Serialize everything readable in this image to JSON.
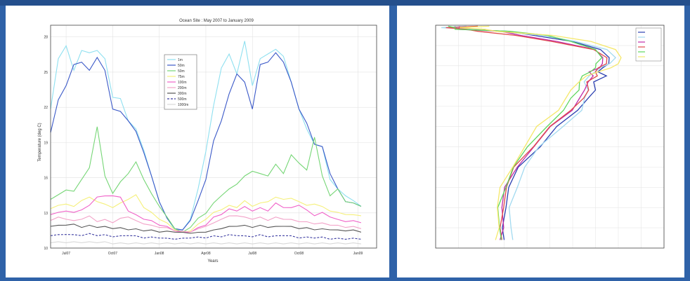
{
  "chart_data": [
    {
      "type": "line",
      "title": "Ocean Site : May 2007 to January 2009",
      "xlabel": "Years",
      "ylabel": "Temperature (deg C)",
      "xlim": [
        0,
        21
      ],
      "ylim": [
        10,
        29
      ],
      "yticks": [
        10,
        13,
        16,
        19,
        22,
        25,
        28
      ],
      "xticks": [
        {
          "x": 1.0,
          "label": "Jul07"
        },
        {
          "x": 4.0,
          "label": "Oct07"
        },
        {
          "x": 7.0,
          "label": "Jan08"
        },
        {
          "x": 10.0,
          "label": "Apr08"
        },
        {
          "x": 13.0,
          "label": "Jul08"
        },
        {
          "x": 16.0,
          "label": "Oct08"
        },
        {
          "x": 19.8,
          "label": "Jan09"
        }
      ],
      "legend_position": "top-center",
      "grid": true,
      "x": [
        0,
        0.5,
        1,
        1.5,
        2,
        2.5,
        3,
        3.5,
        4,
        4.5,
        5,
        5.5,
        6,
        6.5,
        7,
        7.5,
        8,
        8.5,
        9,
        9.5,
        10,
        10.5,
        11,
        11.5,
        12,
        12.5,
        13,
        13.5,
        14,
        14.5,
        15,
        15.5,
        16,
        16.5,
        17,
        17.5,
        18,
        18.5,
        19,
        19.5,
        20
      ],
      "series": [
        {
          "name": "1m",
          "color": "#8fe0f0",
          "style": "solid",
          "values": [
            22,
            26,
            27.4,
            25,
            27,
            26.5,
            27,
            26,
            23,
            22.6,
            21,
            20,
            18.5,
            16,
            14,
            12.5,
            11.6,
            11.5,
            12.5,
            15,
            18.4,
            22,
            25.5,
            26.4,
            25,
            27.5,
            24,
            26,
            26.7,
            26.8,
            26.5,
            24,
            22,
            20,
            19,
            18.5,
            16,
            15,
            14.5,
            14,
            13.6
          ]
        },
        {
          "name": "50m",
          "color": "#3b59c8",
          "style": "solid",
          "values": [
            20,
            22.5,
            24,
            25.5,
            26,
            25,
            26.4,
            25,
            22,
            21.5,
            21,
            19.8,
            18.3,
            16,
            14,
            12.5,
            11.7,
            11.5,
            12.4,
            14,
            16,
            19,
            21,
            23,
            25,
            24,
            22,
            25.5,
            26,
            26.5,
            26,
            24,
            22,
            20.5,
            19,
            18.5,
            16.5,
            15,
            14,
            13.8,
            13.6
          ]
        },
        {
          "name": "50m",
          "color": "#76d676",
          "style": "solid",
          "values": [
            14.2,
            14.5,
            15,
            14.8,
            16,
            16.7,
            20.5,
            16,
            14.7,
            15.5,
            16.5,
            17.2,
            16,
            14.6,
            13.6,
            12.6,
            11.7,
            11.3,
            11.8,
            12.5,
            13,
            13.8,
            14.5,
            15,
            15.6,
            16,
            16.7,
            16.2,
            16.3,
            17,
            16.5,
            17.8,
            17.4,
            16.5,
            19.6,
            16,
            14.5,
            15,
            14,
            13.8,
            13.6
          ]
        },
        {
          "name": "75m",
          "color": "#f5f07a",
          "style": "solid",
          "values": [
            13.4,
            13.6,
            13.8,
            13.5,
            14.1,
            14.3,
            14,
            13.7,
            13.5,
            13.8,
            14.2,
            14.5,
            13.5,
            13,
            12.5,
            12.1,
            11.6,
            11.3,
            11.5,
            12,
            12.5,
            13,
            13.3,
            13.6,
            13.5,
            14,
            13.6,
            13.8,
            14,
            14.3,
            14.2,
            14.2,
            14,
            13.6,
            13.8,
            13.5,
            13.2,
            13,
            12.9,
            12.8,
            12.8
          ]
        },
        {
          "name": "100m",
          "color": "#f062c8",
          "style": "solid",
          "values": [
            12.9,
            13,
            13.2,
            13,
            13.3,
            13.6,
            14.4,
            14.4,
            14.5,
            14.3,
            13.2,
            12.8,
            12.5,
            12.3,
            12,
            11.8,
            11.5,
            11.3,
            11.4,
            11.7,
            12,
            12.6,
            12.9,
            13.3,
            13.2,
            13.5,
            13.2,
            13.4,
            13.2,
            13.8,
            13.5,
            13.4,
            13.7,
            13.2,
            12.8,
            13,
            12.7,
            12.4,
            12.3,
            12.3,
            12.2
          ]
        },
        {
          "name": "200m",
          "color": "#f2a2c8",
          "style": "solid",
          "values": [
            12.4,
            12.6,
            12.5,
            12.3,
            12.5,
            12.7,
            12.3,
            12.4,
            12.2,
            12.5,
            12.7,
            12.3,
            12.1,
            11.9,
            11.8,
            11.7,
            11.5,
            11.4,
            11.4,
            11.6,
            11.9,
            12.1,
            12.5,
            12.7,
            12.8,
            12.6,
            12.5,
            12.6,
            12.4,
            12.6,
            12.5,
            12.4,
            12.3,
            12.2,
            12.1,
            12.1,
            12,
            11.9,
            11.8,
            11.8,
            11.7
          ]
        },
        {
          "name": "300m",
          "color": "#555555",
          "style": "solid",
          "values": [
            11.9,
            11.9,
            12,
            12,
            11.8,
            11.9,
            11.8,
            11.8,
            11.7,
            11.7,
            11.6,
            11.6,
            11.5,
            11.5,
            11.4,
            11.4,
            11.4,
            11.3,
            11.3,
            11.3,
            11.4,
            11.5,
            11.7,
            11.8,
            11.9,
            11.9,
            11.8,
            11.9,
            11.8,
            11.8,
            11.9,
            11.8,
            11.7,
            11.7,
            11.6,
            11.6,
            11.6,
            11.5,
            11.5,
            11.5,
            11.4
          ]
        },
        {
          "name": "500m",
          "color": "#3a3aa0",
          "style": "dashed",
          "values": [
            11.1,
            11.1,
            11.2,
            11.1,
            11.1,
            11.2,
            11.1,
            11.1,
            11,
            11,
            11.1,
            11,
            10.9,
            10.9,
            10.9,
            10.8,
            10.8,
            10.8,
            10.9,
            10.9,
            10.9,
            11,
            11,
            11.1,
            11.1,
            11,
            11,
            11.1,
            11,
            11,
            11.1,
            11,
            10.9,
            10.9,
            10.9,
            10.9,
            10.8,
            10.8,
            10.8,
            10.8,
            10.8
          ]
        },
        {
          "name": "1000m",
          "color": "#d8d8d8",
          "style": "solid",
          "values": [
            10.5,
            10.5,
            10.5,
            10.5,
            10.5,
            10.5,
            10.5,
            10.5,
            10.4,
            10.4,
            10.4,
            10.4,
            10.4,
            10.4,
            10.4,
            10.4,
            10.4,
            10.4,
            10.4,
            10.4,
            10.4,
            10.4,
            10.4,
            10.4,
            10.4,
            10.4,
            10.4,
            10.4,
            10.4,
            10.4,
            10.4,
            10.4,
            10.4,
            10.4,
            10.4,
            10.4,
            10.4,
            10.4,
            10.4,
            10.4,
            10.4
          ]
        }
      ]
    },
    {
      "type": "line",
      "title": "",
      "xlabel": "",
      "ylabel": "",
      "xlim": [
        0,
        10
      ],
      "ylim": [
        0,
        11
      ],
      "legend_position": "top-right",
      "grid": true,
      "depth": [
        0.05,
        0.12,
        0.2,
        0.3,
        0.5,
        0.8,
        1.2,
        1.6,
        1.9,
        2.1,
        2.3,
        2.5,
        2.8,
        3.2,
        3.6,
        4.2,
        5,
        6,
        7,
        8,
        9,
        10,
        10.6
      ],
      "series": [
        {
          "name": "s1",
          "color": "#2b3fb0",
          "values": [
            1.2,
            0.5,
            1.5,
            2.8,
            4.3,
            5.9,
            7.3,
            7.6,
            7.5,
            7.4,
            7.1,
            7.4,
            7.0,
            7.0,
            6.6,
            6.3,
            5.3,
            4.5,
            3.7,
            3.2,
            3.0,
            3.0,
            3.0
          ]
        },
        {
          "name": "s2",
          "color": "#a2daf0",
          "values": [
            1.0,
            0.6,
            1.8,
            3.0,
            4.6,
            6.2,
            7.5,
            7.8,
            7.7,
            7.2,
            6.9,
            6.8,
            6.5,
            6.6,
            6.6,
            6.4,
            5.5,
            4.6,
            3.9,
            3.5,
            3.3,
            3.3,
            3.3
          ]
        },
        {
          "name": "s3",
          "color": "#c02aa8",
          "values": [
            1.4,
            0.7,
            1.3,
            2.5,
            3.8,
            5.3,
            6.9,
            7.4,
            7.3,
            7.1,
            6.8,
            6.9,
            6.6,
            6.6,
            6.3,
            5.9,
            5.1,
            4.3,
            3.5,
            3.1,
            2.9,
            2.9,
            2.9
          ]
        },
        {
          "name": "s4",
          "color": "#e04a4a",
          "values": [
            1.5,
            0.8,
            1.0,
            2.2,
            3.5,
            5.0,
            7.0,
            7.5,
            7.4,
            7.2,
            7.0,
            7.0,
            6.7,
            6.7,
            6.4,
            6.0,
            5.0,
            4.2,
            3.5,
            3.1,
            2.9,
            2.9,
            2.9
          ]
        },
        {
          "name": "s5",
          "color": "#5ed65e",
          "values": [
            0.9,
            0.5,
            1.2,
            2.9,
            4.8,
            6.0,
            7.0,
            7.2,
            7.1,
            7.0,
            6.7,
            6.5,
            6.3,
            6.2,
            6.0,
            5.6,
            4.8,
            4.1,
            3.4,
            3.0,
            2.8,
            2.8,
            2.8
          ]
        },
        {
          "name": "s6",
          "color": "#f5e86a",
          "values": [
            2.0,
            1.4,
            1.8,
            3.0,
            5.2,
            6.8,
            7.8,
            8.2,
            8.0,
            7.6,
            7.2,
            6.6,
            6.2,
            6.0,
            5.7,
            5.3,
            4.5,
            3.9,
            3.3,
            2.9,
            2.7,
            2.7,
            2.7
          ]
        }
      ]
    }
  ]
}
